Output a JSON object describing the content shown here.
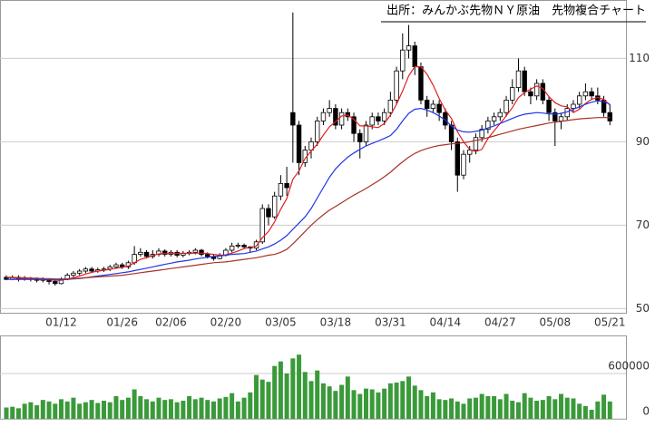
{
  "chart_data": {
    "type": "candlestick",
    "title": "出所：みんかぶ先物ＮＹ原油　先物複合チャート",
    "categories": [
      null,
      null,
      null,
      null,
      null,
      null,
      null,
      null,
      null,
      "01/12",
      null,
      null,
      null,
      null,
      null,
      null,
      null,
      null,
      null,
      "01/26",
      null,
      null,
      null,
      null,
      null,
      null,
      null,
      "02/06",
      null,
      null,
      null,
      null,
      null,
      null,
      null,
      null,
      "02/20",
      null,
      null,
      null,
      null,
      null,
      null,
      null,
      null,
      "03/05",
      null,
      null,
      null,
      null,
      null,
      null,
      null,
      null,
      "03/18",
      null,
      null,
      null,
      null,
      null,
      null,
      null,
      null,
      "03/31",
      null,
      null,
      null,
      null,
      null,
      null,
      null,
      null,
      "04/14",
      null,
      null,
      null,
      null,
      null,
      null,
      null,
      null,
      "04/27",
      null,
      null,
      null,
      null,
      null,
      null,
      null,
      null,
      "05/08",
      null,
      null,
      null,
      null,
      null,
      null,
      null,
      null,
      "05/21"
    ],
    "ohlc": [
      [
        57.5,
        58,
        56.8,
        57
      ],
      [
        57,
        58,
        56.8,
        57.5
      ],
      [
        57.5,
        58,
        56.5,
        57
      ],
      [
        57,
        57.8,
        56.7,
        57.3
      ],
      [
        57.3,
        57.6,
        56.5,
        57
      ],
      [
        57,
        57.5,
        56.3,
        56.8
      ],
      [
        56.8,
        57.5,
        56.3,
        57
      ],
      [
        57,
        57.2,
        55.8,
        56.5
      ],
      [
        56.5,
        57,
        55.5,
        56
      ],
      [
        56,
        57.5,
        55.8,
        57
      ],
      [
        57,
        58.5,
        56.8,
        58
      ],
      [
        58,
        59,
        57.5,
        58.5
      ],
      [
        58.5,
        59.5,
        58,
        59
      ],
      [
        59,
        60,
        58.5,
        59.5
      ],
      [
        59.5,
        60,
        58.5,
        59
      ],
      [
        59,
        59.8,
        58.6,
        59.3
      ],
      [
        59.3,
        60,
        58.8,
        59.5
      ],
      [
        59.5,
        60.5,
        59,
        60
      ],
      [
        60,
        61,
        59.5,
        60.5
      ],
      [
        60.5,
        61,
        59.5,
        60
      ],
      [
        60,
        61.5,
        59.5,
        61
      ],
      [
        61,
        65,
        60.5,
        63
      ],
      [
        63,
        64.5,
        62.5,
        63.5
      ],
      [
        63.5,
        64,
        62,
        62.5
      ],
      [
        62.5,
        64,
        62,
        63
      ],
      [
        63,
        64.5,
        62.5,
        63.8
      ],
      [
        63.8,
        64.2,
        62.5,
        63
      ],
      [
        63,
        64,
        62.5,
        63.5
      ],
      [
        63.5,
        64,
        62.3,
        62.8
      ],
      [
        62.8,
        63.8,
        62.3,
        63.2
      ],
      [
        63.2,
        64,
        62.8,
        63.5
      ],
      [
        63.5,
        64.5,
        63,
        64
      ],
      [
        64,
        64.3,
        62.5,
        63
      ],
      [
        63,
        63.5,
        62,
        62.5
      ],
      [
        62.5,
        63,
        61.5,
        62
      ],
      [
        62,
        63.3,
        61.8,
        62.8
      ],
      [
        62.8,
        64.5,
        62.5,
        64
      ],
      [
        64,
        65.8,
        63.5,
        65
      ],
      [
        65,
        65.8,
        64.5,
        65.2
      ],
      [
        65.2,
        65.6,
        64.3,
        64.8
      ],
      [
        64.8,
        65,
        63.5,
        64.5
      ],
      [
        64.5,
        66.5,
        64,
        66
      ],
      [
        66,
        75,
        65.5,
        74
      ],
      [
        74,
        75,
        70,
        72
      ],
      [
        72,
        78,
        71.5,
        77
      ],
      [
        77,
        82,
        76,
        80
      ],
      [
        80,
        84,
        77,
        79
      ],
      [
        97,
        121,
        85,
        94
      ],
      [
        94,
        95,
        82,
        85
      ],
      [
        85,
        89,
        84,
        88
      ],
      [
        88,
        91,
        86,
        90
      ],
      [
        90,
        96,
        89,
        95
      ],
      [
        95,
        98,
        94,
        97
      ],
      [
        97,
        100,
        96,
        98
      ],
      [
        98,
        99,
        93,
        94
      ],
      [
        94,
        98,
        93,
        97
      ],
      [
        97,
        98,
        95,
        96
      ],
      [
        96,
        97,
        90,
        92
      ],
      [
        92,
        93,
        86,
        90
      ],
      [
        90,
        95,
        89,
        94
      ],
      [
        94,
        97,
        93,
        96
      ],
      [
        96,
        97,
        94,
        95
      ],
      [
        95,
        98,
        94,
        97
      ],
      [
        97,
        102,
        96,
        100
      ],
      [
        100,
        108,
        99,
        107
      ],
      [
        107,
        116,
        105,
        112
      ],
      [
        112,
        118,
        110,
        113
      ],
      [
        113,
        114,
        106,
        108
      ],
      [
        108,
        109,
        99,
        100
      ],
      [
        100,
        101,
        96,
        98
      ],
      [
        98,
        100,
        97,
        99
      ],
      [
        99,
        100,
        95,
        97
      ],
      [
        97,
        98,
        93,
        94
      ],
      [
        94,
        95,
        88,
        90
      ],
      [
        90,
        91,
        78,
        82
      ],
      [
        82,
        88,
        81,
        87
      ],
      [
        87,
        89,
        85,
        88
      ],
      [
        88,
        92,
        87,
        91
      ],
      [
        91,
        94,
        90,
        93
      ],
      [
        93,
        96,
        92,
        95
      ],
      [
        95,
        97,
        94,
        96
      ],
      [
        96,
        98,
        95,
        97
      ],
      [
        97,
        101,
        96,
        100
      ],
      [
        100,
        105,
        99,
        103
      ],
      [
        103,
        110,
        102,
        107
      ],
      [
        107,
        108,
        101,
        102
      ],
      [
        102,
        103,
        99,
        101
      ],
      [
        101,
        105,
        100,
        104
      ],
      [
        104,
        105,
        99,
        100
      ],
      [
        100,
        101,
        95,
        97
      ],
      [
        97,
        98,
        89,
        95
      ],
      [
        95,
        97,
        93,
        96
      ],
      [
        96,
        99,
        95,
        98
      ],
      [
        98,
        100,
        97,
        99
      ],
      [
        99,
        102,
        98,
        101
      ],
      [
        101,
        104,
        100,
        102
      ],
      [
        102,
        103,
        100,
        101
      ],
      [
        101,
        103,
        99,
        100
      ],
      [
        100,
        101,
        96,
        97
      ],
      [
        97,
        99,
        94,
        95
      ]
    ],
    "candle_colors": {
      "up": "#ffffff",
      "down": "#000000",
      "edge": "#000000"
    },
    "series": [
      {
        "color": "#e02020",
        "values": [
          57.5,
          57.4,
          57.3,
          57.2,
          57.1,
          57.1,
          57,
          56.9,
          56.8,
          56.8,
          57.1,
          57.4,
          57.8,
          58.3,
          58.7,
          59,
          59.2,
          59.4,
          59.7,
          59.9,
          60.2,
          61,
          61.8,
          62.2,
          62.7,
          63.1,
          63.2,
          63.2,
          63.2,
          63.3,
          63.2,
          63.3,
          63.3,
          63.2,
          63,
          62.8,
          62.9,
          63.3,
          63.8,
          64.4,
          64.7,
          65,
          67,
          68.5,
          70.8,
          73.8,
          76.4,
          81,
          83,
          86,
          87.8,
          89.4,
          91.6,
          93.6,
          94.8,
          96.2,
          96.4,
          95.4,
          93.8,
          93.8,
          93.6,
          93.4,
          94.4,
          96.4,
          99,
          102.2,
          105.8,
          108,
          108,
          106.2,
          103.6,
          100.4,
          97.6,
          95.6,
          92.4,
          90,
          88.2,
          87.6,
          88.2,
          90.8,
          92.6,
          94.4,
          96.2,
          98.2,
          100.6,
          101.8,
          102.6,
          103.4,
          102.8,
          100.8,
          99.4,
          98.6,
          98.4,
          97,
          97.8,
          99.2,
          100.2,
          100.6,
          100.2,
          98.8
        ]
      },
      {
        "color": "#2034e8",
        "values": [
          57,
          57,
          57,
          57,
          57,
          57,
          57,
          56.9,
          56.9,
          56.9,
          57,
          57.1,
          57.2,
          57.4,
          57.6,
          57.8,
          58,
          58.2,
          58.4,
          58.6,
          58.8,
          59.1,
          59.4,
          59.7,
          60,
          60.3,
          60.6,
          60.9,
          61.2,
          61.4,
          61.6,
          61.9,
          62.1,
          62.3,
          62.5,
          62.6,
          62.8,
          63,
          63.1,
          63.2,
          63.5,
          63.8,
          64.3,
          64.8,
          65.5,
          66.4,
          67.5,
          69,
          70.5,
          72,
          74,
          76.5,
          79,
          81.5,
          83.5,
          85,
          86.3,
          87.3,
          88.2,
          89,
          89.6,
          90.2,
          90.8,
          91.5,
          93,
          95,
          96.8,
          97.8,
          98,
          97.6,
          97,
          96.2,
          95.2,
          93.8,
          92.8,
          92.4,
          92.3,
          92.5,
          92.8,
          93.3,
          93.8,
          94.4,
          95,
          95.6,
          96.2,
          96.6,
          96.8,
          97,
          96.9,
          96.7,
          96.6,
          96.8,
          97.2,
          97.8,
          98.4,
          99,
          99.5,
          99.8,
          99.6,
          99
        ]
      },
      {
        "color": "#a83228",
        "values": [
          57.5,
          57.5,
          57.4,
          57.4,
          57.3,
          57.3,
          57.2,
          57.2,
          57.1,
          57.1,
          57.1,
          57.2,
          57.3,
          57.4,
          57.5,
          57.6,
          57.7,
          57.8,
          57.9,
          58,
          58.2,
          58.4,
          58.6,
          58.8,
          59,
          59.2,
          59.4,
          59.6,
          59.8,
          60,
          60.2,
          60.4,
          60.6,
          60.8,
          61,
          61.1,
          61.2,
          61.4,
          61.6,
          61.8,
          62,
          62.2,
          62.5,
          62.8,
          63,
          63.5,
          64.2,
          65.5,
          67,
          68.5,
          70,
          71.3,
          72.5,
          73.6,
          74.5,
          75.4,
          76.3,
          77.2,
          78,
          78.8,
          79.7,
          80.6,
          81.6,
          82.7,
          84,
          85.2,
          86.3,
          87.2,
          87.9,
          88.4,
          88.8,
          89.1,
          89.3,
          89.5,
          89.6,
          89.8,
          90,
          90.3,
          90.6,
          91,
          91.4,
          91.8,
          92.2,
          92.6,
          93,
          93.3,
          93.6,
          93.9,
          94.2,
          94.5,
          94.7,
          94.9,
          95.1,
          95.3,
          95.5,
          95.6,
          95.7,
          95.8,
          95.8,
          95.8
        ]
      }
    ],
    "ylim": [
      49,
      124
    ],
    "yticks": [
      50,
      70,
      90,
      110
    ],
    "grid": true,
    "volume": {
      "color": "#3a9a3a",
      "ylim": [
        0,
        1080000
      ],
      "yticks": [
        0,
        600000
      ],
      "values": [
        150000,
        160000,
        140000,
        200000,
        220000,
        180000,
        250000,
        230000,
        200000,
        260000,
        230000,
        280000,
        200000,
        220000,
        250000,
        210000,
        240000,
        220000,
        300000,
        250000,
        280000,
        390000,
        300000,
        260000,
        230000,
        280000,
        250000,
        260000,
        220000,
        240000,
        300000,
        260000,
        280000,
        250000,
        230000,
        270000,
        290000,
        340000,
        230000,
        280000,
        350000,
        580000,
        520000,
        490000,
        700000,
        760000,
        600000,
        800000,
        850000,
        620000,
        500000,
        640000,
        470000,
        430000,
        370000,
        450000,
        560000,
        380000,
        330000,
        400000,
        390000,
        350000,
        400000,
        470000,
        480000,
        500000,
        560000,
        440000,
        380000,
        300000,
        350000,
        260000,
        250000,
        270000,
        230000,
        200000,
        270000,
        280000,
        330000,
        300000,
        300000,
        260000,
        330000,
        240000,
        220000,
        340000,
        280000,
        240000,
        250000,
        300000,
        260000,
        330000,
        280000,
        270000,
        200000,
        170000,
        120000,
        230000,
        320000,
        230000
      ]
    }
  }
}
